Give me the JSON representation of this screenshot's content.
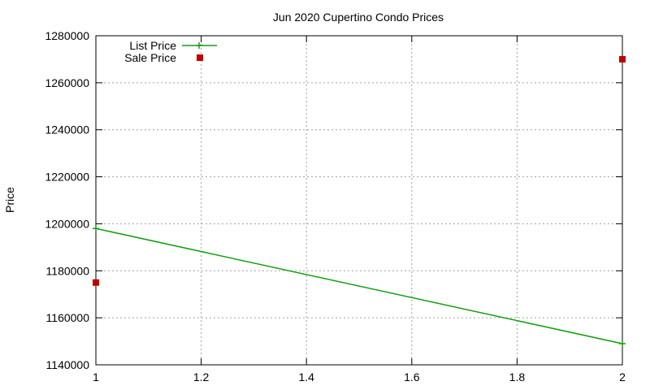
{
  "chart_data": {
    "type": "line",
    "title": "Jun 2020 Cupertino Condo Prices",
    "xlabel": "",
    "ylabel": "Price",
    "xlim": [
      1,
      2
    ],
    "ylim": [
      1140000,
      1280000
    ],
    "xticks": [
      1,
      1.2,
      1.4,
      1.6,
      1.8,
      2
    ],
    "xtick_labels": [
      "1",
      "1.2",
      "1.4",
      "1.6",
      "1.8",
      "2"
    ],
    "yticks": [
      1140000,
      1160000,
      1180000,
      1200000,
      1220000,
      1240000,
      1260000,
      1280000
    ],
    "ytick_labels": [
      "1140000",
      "1160000",
      "1180000",
      "1200000",
      "1220000",
      "1240000",
      "1260000",
      "1280000"
    ],
    "grid": true,
    "legend_position": "top-left",
    "series": [
      {
        "name": "List Price",
        "style": "line+cross",
        "color": "#11a00f",
        "points": [
          {
            "x": 1,
            "y": 1198000
          },
          {
            "x": 2,
            "y": 1149000
          }
        ]
      },
      {
        "name": "Sale Price",
        "style": "square",
        "color": "#c00000",
        "points": [
          {
            "x": 1,
            "y": 1175000
          },
          {
            "x": 2,
            "y": 1270000
          }
        ]
      }
    ]
  }
}
